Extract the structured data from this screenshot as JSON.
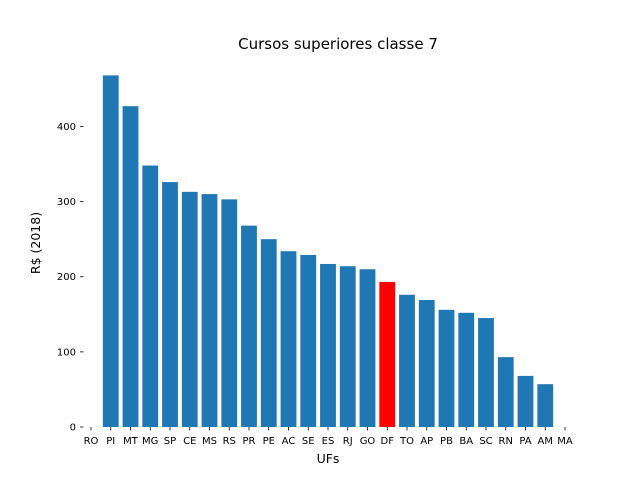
{
  "chart_data": {
    "type": "bar",
    "title": "Cursos superiores classe 7",
    "xlabel": "UFs",
    "ylabel": "R$ (2018)",
    "categories": [
      "RO",
      "PI",
      "MT",
      "MG",
      "SP",
      "CE",
      "MS",
      "RS",
      "PR",
      "PE",
      "AC",
      "SE",
      "ES",
      "RJ",
      "GO",
      "DF",
      "TO",
      "AP",
      "PB",
      "BA",
      "SC",
      "RN",
      "PA",
      "AM",
      "MA"
    ],
    "values": [
      0,
      468,
      427,
      348,
      326,
      313,
      310,
      303,
      268,
      250,
      234,
      229,
      217,
      214,
      210,
      193,
      176,
      169,
      156,
      152,
      145,
      93,
      68,
      57,
      0
    ],
    "highlight_category": "DF",
    "bar_color": "#1f77b4",
    "highlight_color": "#ff0000",
    "ylim": [
      0,
      470
    ],
    "yticks": [
      0,
      100,
      200,
      300,
      400
    ],
    "grid": false
  }
}
